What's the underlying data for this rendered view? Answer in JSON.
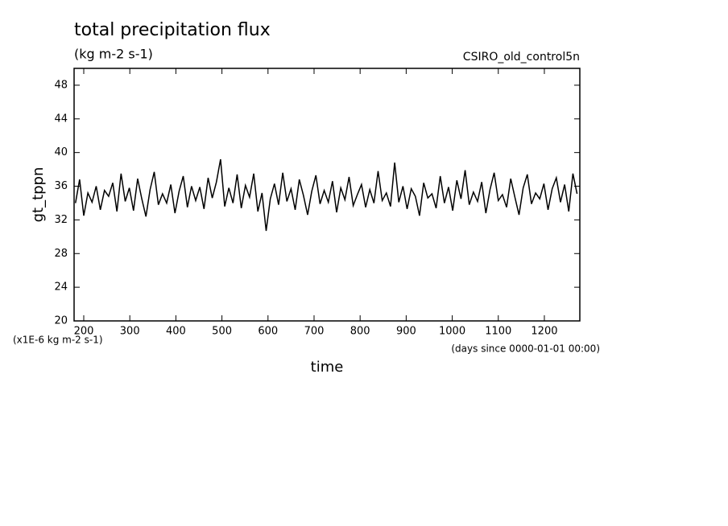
{
  "chart_data": {
    "type": "line",
    "title": "total precipitation flux",
    "subtitle": "(kg m-2 s-1)",
    "annotation": "CSIRO_old_control5n",
    "y_label": "gt_tppn",
    "x_label": "time",
    "y_units": "(x1E-6 kg m-2 s-1)",
    "x_units": "(days since 0000-01-01 00:00)",
    "xlim": [
      179,
      1277
    ],
    "ylim": [
      20,
      50
    ],
    "xticks": [
      200,
      300,
      400,
      500,
      600,
      700,
      800,
      900,
      1000,
      1100,
      1200
    ],
    "yticks": [
      20,
      24,
      28,
      32,
      36,
      40,
      44,
      48
    ],
    "color": "#000000",
    "x": [
      182,
      191,
      200,
      209,
      218,
      227,
      236,
      245,
      254,
      263,
      272,
      281,
      290,
      299,
      308,
      317,
      326,
      335,
      344,
      353,
      362,
      371,
      380,
      389,
      398,
      407,
      416,
      425,
      434,
      443,
      452,
      461,
      470,
      479,
      488,
      497,
      506,
      515,
      524,
      533,
      542,
      551,
      560,
      569,
      578,
      587,
      596,
      605,
      614,
      623,
      632,
      641,
      650,
      659,
      668,
      677,
      686,
      695,
      704,
      713,
      722,
      731,
      740,
      749,
      758,
      767,
      776,
      785,
      794,
      803,
      812,
      821,
      830,
      839,
      848,
      857,
      866,
      875,
      884,
      893,
      902,
      911,
      920,
      929,
      938,
      947,
      956,
      965,
      974,
      983,
      992,
      1001,
      1010,
      1019,
      1028,
      1037,
      1046,
      1055,
      1064,
      1073,
      1082,
      1091,
      1100,
      1109,
      1118,
      1127,
      1136,
      1145,
      1154,
      1163,
      1172,
      1181,
      1190,
      1199,
      1208,
      1217,
      1226,
      1235,
      1244,
      1253,
      1262,
      1271
    ],
    "values": [
      34.0,
      36.8,
      32.5,
      35.2,
      34.1,
      36.0,
      33.2,
      35.5,
      34.8,
      36.4,
      33.0,
      37.5,
      34.2,
      35.8,
      33.1,
      36.9,
      34.5,
      32.4,
      35.6,
      37.7,
      33.8,
      35.1,
      34.0,
      36.2,
      32.8,
      35.4,
      37.2,
      33.5,
      36.0,
      34.3,
      35.9,
      33.3,
      37.0,
      34.6,
      36.5,
      39.2,
      33.6,
      35.8,
      34.0,
      37.4,
      33.4,
      36.1,
      34.7,
      37.5,
      33.0,
      35.2,
      30.7,
      34.5,
      36.3,
      33.8,
      37.6,
      34.2,
      35.7,
      33.2,
      36.8,
      34.9,
      32.6,
      35.4,
      37.3,
      33.9,
      35.5,
      34.1,
      36.6,
      32.9,
      35.8,
      34.4,
      37.1,
      33.7,
      35.0,
      36.2,
      33.5,
      35.6,
      34.0,
      37.8,
      34.3,
      35.2,
      33.6,
      38.8,
      34.1,
      36.0,
      33.3,
      35.7,
      34.8,
      32.5,
      36.4,
      34.6,
      35.1,
      33.4,
      37.2,
      34.0,
      35.9,
      33.1,
      36.7,
      34.5,
      37.9,
      33.8,
      35.3,
      34.2,
      36.5,
      32.8,
      35.6,
      37.6,
      34.3,
      35.0,
      33.5,
      36.9,
      34.7,
      32.6,
      35.8,
      37.4,
      33.9,
      35.2,
      34.5,
      36.3,
      33.2,
      35.7,
      37.0,
      34.1,
      36.2,
      33.0,
      37.5,
      35.1
    ]
  }
}
